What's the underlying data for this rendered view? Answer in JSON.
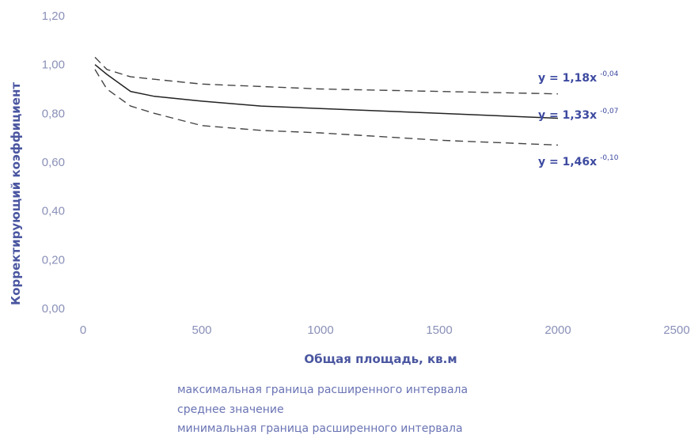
{
  "chart_data": {
    "type": "line",
    "title": "",
    "xlabel": "Общая площадь, кв.м",
    "ylabel": "Корректирующий коэффициент",
    "xlim": [
      0,
      2500
    ],
    "ylim": [
      0,
      1.2
    ],
    "x_ticks": [
      "0",
      "500",
      "1000",
      "1500",
      "2000",
      "2500"
    ],
    "y_ticks": [
      "0,00",
      "0,20",
      "0,40",
      "0,60",
      "0,80",
      "1,00",
      "1,20"
    ],
    "grid": false,
    "legend_position": "bottom",
    "series": [
      {
        "name": "максимальная граница расширенного интервала",
        "style": "dashed",
        "color": "#444444",
        "x": [
          50,
          100,
          200,
          300,
          500,
          750,
          1000,
          1500,
          2000
        ],
        "y": [
          1.03,
          0.98,
          0.95,
          0.94,
          0.92,
          0.91,
          0.9,
          0.89,
          0.88
        ],
        "equation": {
          "base": "y = 1,18x",
          "exponent": "-0,04"
        }
      },
      {
        "name": "среднее значение",
        "style": "solid",
        "color": "#222222",
        "x": [
          50,
          100,
          200,
          300,
          500,
          750,
          1000,
          1500,
          2000
        ],
        "y": [
          1.0,
          0.96,
          0.89,
          0.87,
          0.85,
          0.83,
          0.82,
          0.8,
          0.78
        ],
        "equation": {
          "base": "y = 1,33x",
          "exponent": "-0,07"
        }
      },
      {
        "name": "минимальная граница расширенного интервала",
        "style": "dashed",
        "color": "#444444",
        "x": [
          50,
          100,
          200,
          300,
          500,
          750,
          1000,
          1500,
          2000
        ],
        "y": [
          0.98,
          0.9,
          0.83,
          0.8,
          0.75,
          0.73,
          0.72,
          0.69,
          0.67
        ],
        "equation": {
          "base": "y = 1,46x",
          "exponent": "-0,10"
        }
      }
    ]
  }
}
